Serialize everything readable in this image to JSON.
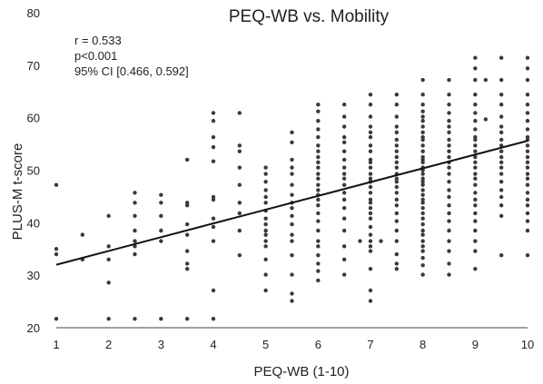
{
  "chart_data": {
    "type": "scatter",
    "title": "PEQ-WB vs. Mobility",
    "xlabel": "PEQ-WB (1-10)",
    "ylabel": "PLUS-M t-score",
    "xlim": [
      1,
      10
    ],
    "ylim": [
      20,
      80
    ],
    "x_ticks": [
      "1",
      "2",
      "3",
      "4",
      "5",
      "6",
      "7",
      "8",
      "9",
      "10"
    ],
    "y_ticks": [
      "20",
      "30",
      "40",
      "50",
      "60",
      "70",
      "80"
    ],
    "annotations": [
      "r = 0.533",
      "p<0.001",
      "95% CI [0.466, 0.592]"
    ],
    "trendline": {
      "x": [
        1,
        10
      ],
      "y": [
        32,
        55.6
      ]
    },
    "colors": {
      "points": "#3a3a3a",
      "line": "#111111",
      "axis": "#444444"
    },
    "points": [
      [
        1,
        21.7
      ],
      [
        1,
        34
      ],
      [
        1,
        35
      ],
      [
        1,
        47.2
      ],
      [
        1.5,
        33
      ],
      [
        1.5,
        37.7
      ],
      [
        2,
        21.7
      ],
      [
        2,
        28.6
      ],
      [
        2,
        33
      ],
      [
        2,
        35.5
      ],
      [
        2,
        41.3
      ],
      [
        2.5,
        21.7
      ],
      [
        2.5,
        34
      ],
      [
        2.5,
        35.5
      ],
      [
        2.5,
        36.5
      ],
      [
        2.5,
        38.5
      ],
      [
        2.5,
        41.3
      ],
      [
        2.5,
        43.8
      ],
      [
        2.5,
        45.7
      ],
      [
        3,
        21.7
      ],
      [
        3,
        36.5
      ],
      [
        3,
        38.5
      ],
      [
        3,
        41.3
      ],
      [
        3,
        43.8
      ],
      [
        3,
        45.3
      ],
      [
        3.5,
        21.7
      ],
      [
        3.5,
        31.2
      ],
      [
        3.5,
        32.2
      ],
      [
        3.5,
        34.6
      ],
      [
        3.5,
        37.7
      ],
      [
        3.5,
        39.7
      ],
      [
        3.5,
        43.3
      ],
      [
        3.5,
        43.8
      ],
      [
        3.5,
        52
      ],
      [
        4,
        21.7
      ],
      [
        4,
        27.1
      ],
      [
        4,
        36.5
      ],
      [
        4,
        39.2
      ],
      [
        4,
        40.8
      ],
      [
        4,
        44.4
      ],
      [
        4,
        44.9
      ],
      [
        4,
        51.7
      ],
      [
        4,
        54.4
      ],
      [
        4,
        56.3
      ],
      [
        4,
        59.4
      ],
      [
        4,
        60.9
      ],
      [
        4.5,
        33.8
      ],
      [
        4.5,
        38.5
      ],
      [
        4.5,
        41.8
      ],
      [
        4.5,
        43.8
      ],
      [
        4.5,
        47.2
      ],
      [
        4.5,
        50.5
      ],
      [
        4.5,
        53.6
      ],
      [
        4.5,
        54.7
      ],
      [
        4.5,
        60.9
      ],
      [
        5,
        27.1
      ],
      [
        5,
        30.1
      ],
      [
        5,
        33
      ],
      [
        5,
        35.5
      ],
      [
        5,
        36.5
      ],
      [
        5,
        37.7
      ],
      [
        5,
        38.5
      ],
      [
        5,
        39.7
      ],
      [
        5,
        40.8
      ],
      [
        5,
        42.3
      ],
      [
        5,
        43.8
      ],
      [
        5,
        44.9
      ],
      [
        5,
        46.2
      ],
      [
        5,
        47.8
      ],
      [
        5,
        49.3
      ],
      [
        5,
        50.5
      ],
      [
        5.5,
        25.1
      ],
      [
        5.5,
        26.5
      ],
      [
        5.5,
        30.1
      ],
      [
        5.5,
        33.8
      ],
      [
        5.5,
        36.5
      ],
      [
        5.5,
        37.7
      ],
      [
        5.5,
        39.7
      ],
      [
        5.5,
        41.3
      ],
      [
        5.5,
        42.8
      ],
      [
        5.5,
        43.8
      ],
      [
        5.5,
        45.3
      ],
      [
        5.5,
        47.2
      ],
      [
        5.5,
        49.3
      ],
      [
        5.5,
        50.5
      ],
      [
        5.5,
        52
      ],
      [
        5.5,
        55.3
      ],
      [
        5.5,
        57.2
      ],
      [
        6,
        29
      ],
      [
        6,
        30.8
      ],
      [
        6,
        32.2
      ],
      [
        6,
        33.8
      ],
      [
        6,
        35.5
      ],
      [
        6,
        36.5
      ],
      [
        6,
        38.5
      ],
      [
        6,
        40.3
      ],
      [
        6,
        41.8
      ],
      [
        6,
        43.3
      ],
      [
        6,
        44.4
      ],
      [
        6,
        45.3
      ],
      [
        6,
        46.2
      ],
      [
        6,
        47.2
      ],
      [
        6,
        48.4
      ],
      [
        6,
        49.3
      ],
      [
        6,
        50.5
      ],
      [
        6,
        51.5
      ],
      [
        6,
        52.5
      ],
      [
        6,
        53.6
      ],
      [
        6,
        54.7
      ],
      [
        6,
        56.3
      ],
      [
        6,
        57.8
      ],
      [
        6,
        59.4
      ],
      [
        6,
        61.2
      ],
      [
        6,
        62.5
      ],
      [
        6.5,
        30.1
      ],
      [
        6.5,
        33
      ],
      [
        6.5,
        35.5
      ],
      [
        6.5,
        38.5
      ],
      [
        6.5,
        40.8
      ],
      [
        6.5,
        42.8
      ],
      [
        6.5,
        44.4
      ],
      [
        6.5,
        45.7
      ],
      [
        6.5,
        47.2
      ],
      [
        6.5,
        48.4
      ],
      [
        6.5,
        49.3
      ],
      [
        6.5,
        50.5
      ],
      [
        6.5,
        52
      ],
      [
        6.5,
        53.6
      ],
      [
        6.5,
        55.3
      ],
      [
        6.5,
        56.3
      ],
      [
        6.5,
        58.3
      ],
      [
        6.5,
        60.2
      ],
      [
        6.5,
        62.5
      ],
      [
        6.8,
        36.5
      ],
      [
        7,
        25.1
      ],
      [
        7,
        27.1
      ],
      [
        7,
        31.2
      ],
      [
        7,
        34.6
      ],
      [
        7,
        35.5
      ],
      [
        7,
        36.5
      ],
      [
        7,
        37.7
      ],
      [
        7,
        39.2
      ],
      [
        7,
        40.8
      ],
      [
        7,
        41.8
      ],
      [
        7,
        42.8
      ],
      [
        7,
        43.8
      ],
      [
        7,
        44.4
      ],
      [
        7,
        45.7
      ],
      [
        7,
        46.8
      ],
      [
        7,
        47.8
      ],
      [
        7,
        48.4
      ],
      [
        7,
        49.3
      ],
      [
        7,
        50.5
      ],
      [
        7,
        51.5
      ],
      [
        7,
        52
      ],
      [
        7,
        53.6
      ],
      [
        7,
        54.7
      ],
      [
        7,
        56.3
      ],
      [
        7,
        57.2
      ],
      [
        7,
        58.3
      ],
      [
        7,
        60.2
      ],
      [
        7,
        62.5
      ],
      [
        7,
        64.4
      ],
      [
        7.2,
        36.5
      ],
      [
        7.5,
        31.2
      ],
      [
        7.5,
        32.2
      ],
      [
        7.5,
        34
      ],
      [
        7.5,
        36.5
      ],
      [
        7.5,
        38.5
      ],
      [
        7.5,
        40.3
      ],
      [
        7.5,
        41.8
      ],
      [
        7.5,
        43.3
      ],
      [
        7.5,
        44.4
      ],
      [
        7.5,
        45.7
      ],
      [
        7.5,
        46.8
      ],
      [
        7.5,
        47.8
      ],
      [
        7.5,
        48.4
      ],
      [
        7.5,
        49.3
      ],
      [
        7.5,
        50.5
      ],
      [
        7.5,
        51.5
      ],
      [
        7.5,
        52.5
      ],
      [
        7.5,
        53.6
      ],
      [
        7.5,
        54.7
      ],
      [
        7.5,
        55.8
      ],
      [
        7.5,
        57.2
      ],
      [
        7.5,
        58.3
      ],
      [
        7.5,
        60.2
      ],
      [
        7.5,
        62.5
      ],
      [
        7.5,
        64.4
      ],
      [
        8,
        30.1
      ],
      [
        8,
        31.9
      ],
      [
        8,
        33.3
      ],
      [
        8,
        34.6
      ],
      [
        8,
        35.5
      ],
      [
        8,
        36.5
      ],
      [
        8,
        37.7
      ],
      [
        8,
        38.5
      ],
      [
        8,
        39.7
      ],
      [
        8,
        40.8
      ],
      [
        8,
        41.8
      ],
      [
        8,
        42.8
      ],
      [
        8,
        43.8
      ],
      [
        8,
        44.4
      ],
      [
        8,
        45.3
      ],
      [
        8,
        46.2
      ],
      [
        8,
        47.2
      ],
      [
        8,
        47.8
      ],
      [
        8,
        48.4
      ],
      [
        8,
        49.3
      ],
      [
        8,
        50
      ],
      [
        8,
        50.5
      ],
      [
        8,
        51.5
      ],
      [
        8,
        52
      ],
      [
        8,
        52.5
      ],
      [
        8,
        53.6
      ],
      [
        8,
        54.7
      ],
      [
        8,
        55.8
      ],
      [
        8,
        56.3
      ],
      [
        8,
        57.2
      ],
      [
        8,
        58.3
      ],
      [
        8,
        59.4
      ],
      [
        8,
        60.2
      ],
      [
        8,
        61.2
      ],
      [
        8,
        62.5
      ],
      [
        8,
        64.4
      ],
      [
        8,
        67.2
      ],
      [
        8.5,
        30.1
      ],
      [
        8.5,
        32.2
      ],
      [
        8.5,
        34.6
      ],
      [
        8.5,
        36.5
      ],
      [
        8.5,
        38.5
      ],
      [
        8.5,
        40.3
      ],
      [
        8.5,
        41.8
      ],
      [
        8.5,
        43.3
      ],
      [
        8.5,
        44.9
      ],
      [
        8.5,
        46.2
      ],
      [
        8.5,
        47.8
      ],
      [
        8.5,
        49.3
      ],
      [
        8.5,
        50.5
      ],
      [
        8.5,
        51.5
      ],
      [
        8.5,
        52.5
      ],
      [
        8.5,
        53.6
      ],
      [
        8.5,
        54.7
      ],
      [
        8.5,
        55.8
      ],
      [
        8.5,
        57.2
      ],
      [
        8.5,
        58.3
      ],
      [
        8.5,
        59.4
      ],
      [
        8.5,
        60.9
      ],
      [
        8.5,
        62.5
      ],
      [
        8.5,
        64.4
      ],
      [
        8.5,
        67.2
      ],
      [
        9,
        31.2
      ],
      [
        9,
        34.6
      ],
      [
        9,
        36.5
      ],
      [
        9,
        38.5
      ],
      [
        9,
        40.3
      ],
      [
        9,
        41.8
      ],
      [
        9,
        43.3
      ],
      [
        9,
        44.4
      ],
      [
        9,
        45.7
      ],
      [
        9,
        47.2
      ],
      [
        9,
        48.4
      ],
      [
        9,
        49.3
      ],
      [
        9,
        50.5
      ],
      [
        9,
        51.5
      ],
      [
        9,
        52.5
      ],
      [
        9,
        53.6
      ],
      [
        9,
        54.7
      ],
      [
        9,
        55.8
      ],
      [
        9,
        56.3
      ],
      [
        9,
        57.8
      ],
      [
        9,
        59.4
      ],
      [
        9,
        60.9
      ],
      [
        9,
        62.5
      ],
      [
        9,
        64.4
      ],
      [
        9,
        67.2
      ],
      [
        9,
        69.4
      ],
      [
        9,
        71.4
      ],
      [
        9.2,
        59.7
      ],
      [
        9.2,
        67.2
      ],
      [
        9.5,
        33.8
      ],
      [
        9.5,
        41.3
      ],
      [
        9.5,
        43.3
      ],
      [
        9.5,
        44.9
      ],
      [
        9.5,
        46.2
      ],
      [
        9.5,
        47.8
      ],
      [
        9.5,
        49.3
      ],
      [
        9.5,
        50.5
      ],
      [
        9.5,
        51.5
      ],
      [
        9.5,
        52.5
      ],
      [
        9.5,
        53.6
      ],
      [
        9.5,
        54.7
      ],
      [
        9.5,
        55.8
      ],
      [
        9.5,
        57.2
      ],
      [
        9.5,
        58.3
      ],
      [
        9.5,
        60.2
      ],
      [
        9.5,
        62.5
      ],
      [
        9.5,
        64.4
      ],
      [
        9.5,
        67.2
      ],
      [
        9.5,
        71.4
      ],
      [
        10,
        33.8
      ],
      [
        10,
        38.5
      ],
      [
        10,
        40.3
      ],
      [
        10,
        41.8
      ],
      [
        10,
        43.3
      ],
      [
        10,
        44.4
      ],
      [
        10,
        45.7
      ],
      [
        10,
        47.2
      ],
      [
        10,
        48.4
      ],
      [
        10,
        49.3
      ],
      [
        10,
        50.5
      ],
      [
        10,
        51.5
      ],
      [
        10,
        52.5
      ],
      [
        10,
        53.6
      ],
      [
        10,
        54.7
      ],
      [
        10,
        55.8
      ],
      [
        10,
        56.3
      ],
      [
        10,
        57.8
      ],
      [
        10,
        59.4
      ],
      [
        10,
        60.9
      ],
      [
        10,
        62.5
      ],
      [
        10,
        64.4
      ],
      [
        10,
        67.2
      ],
      [
        10,
        69.4
      ],
      [
        10,
        71.4
      ]
    ]
  }
}
